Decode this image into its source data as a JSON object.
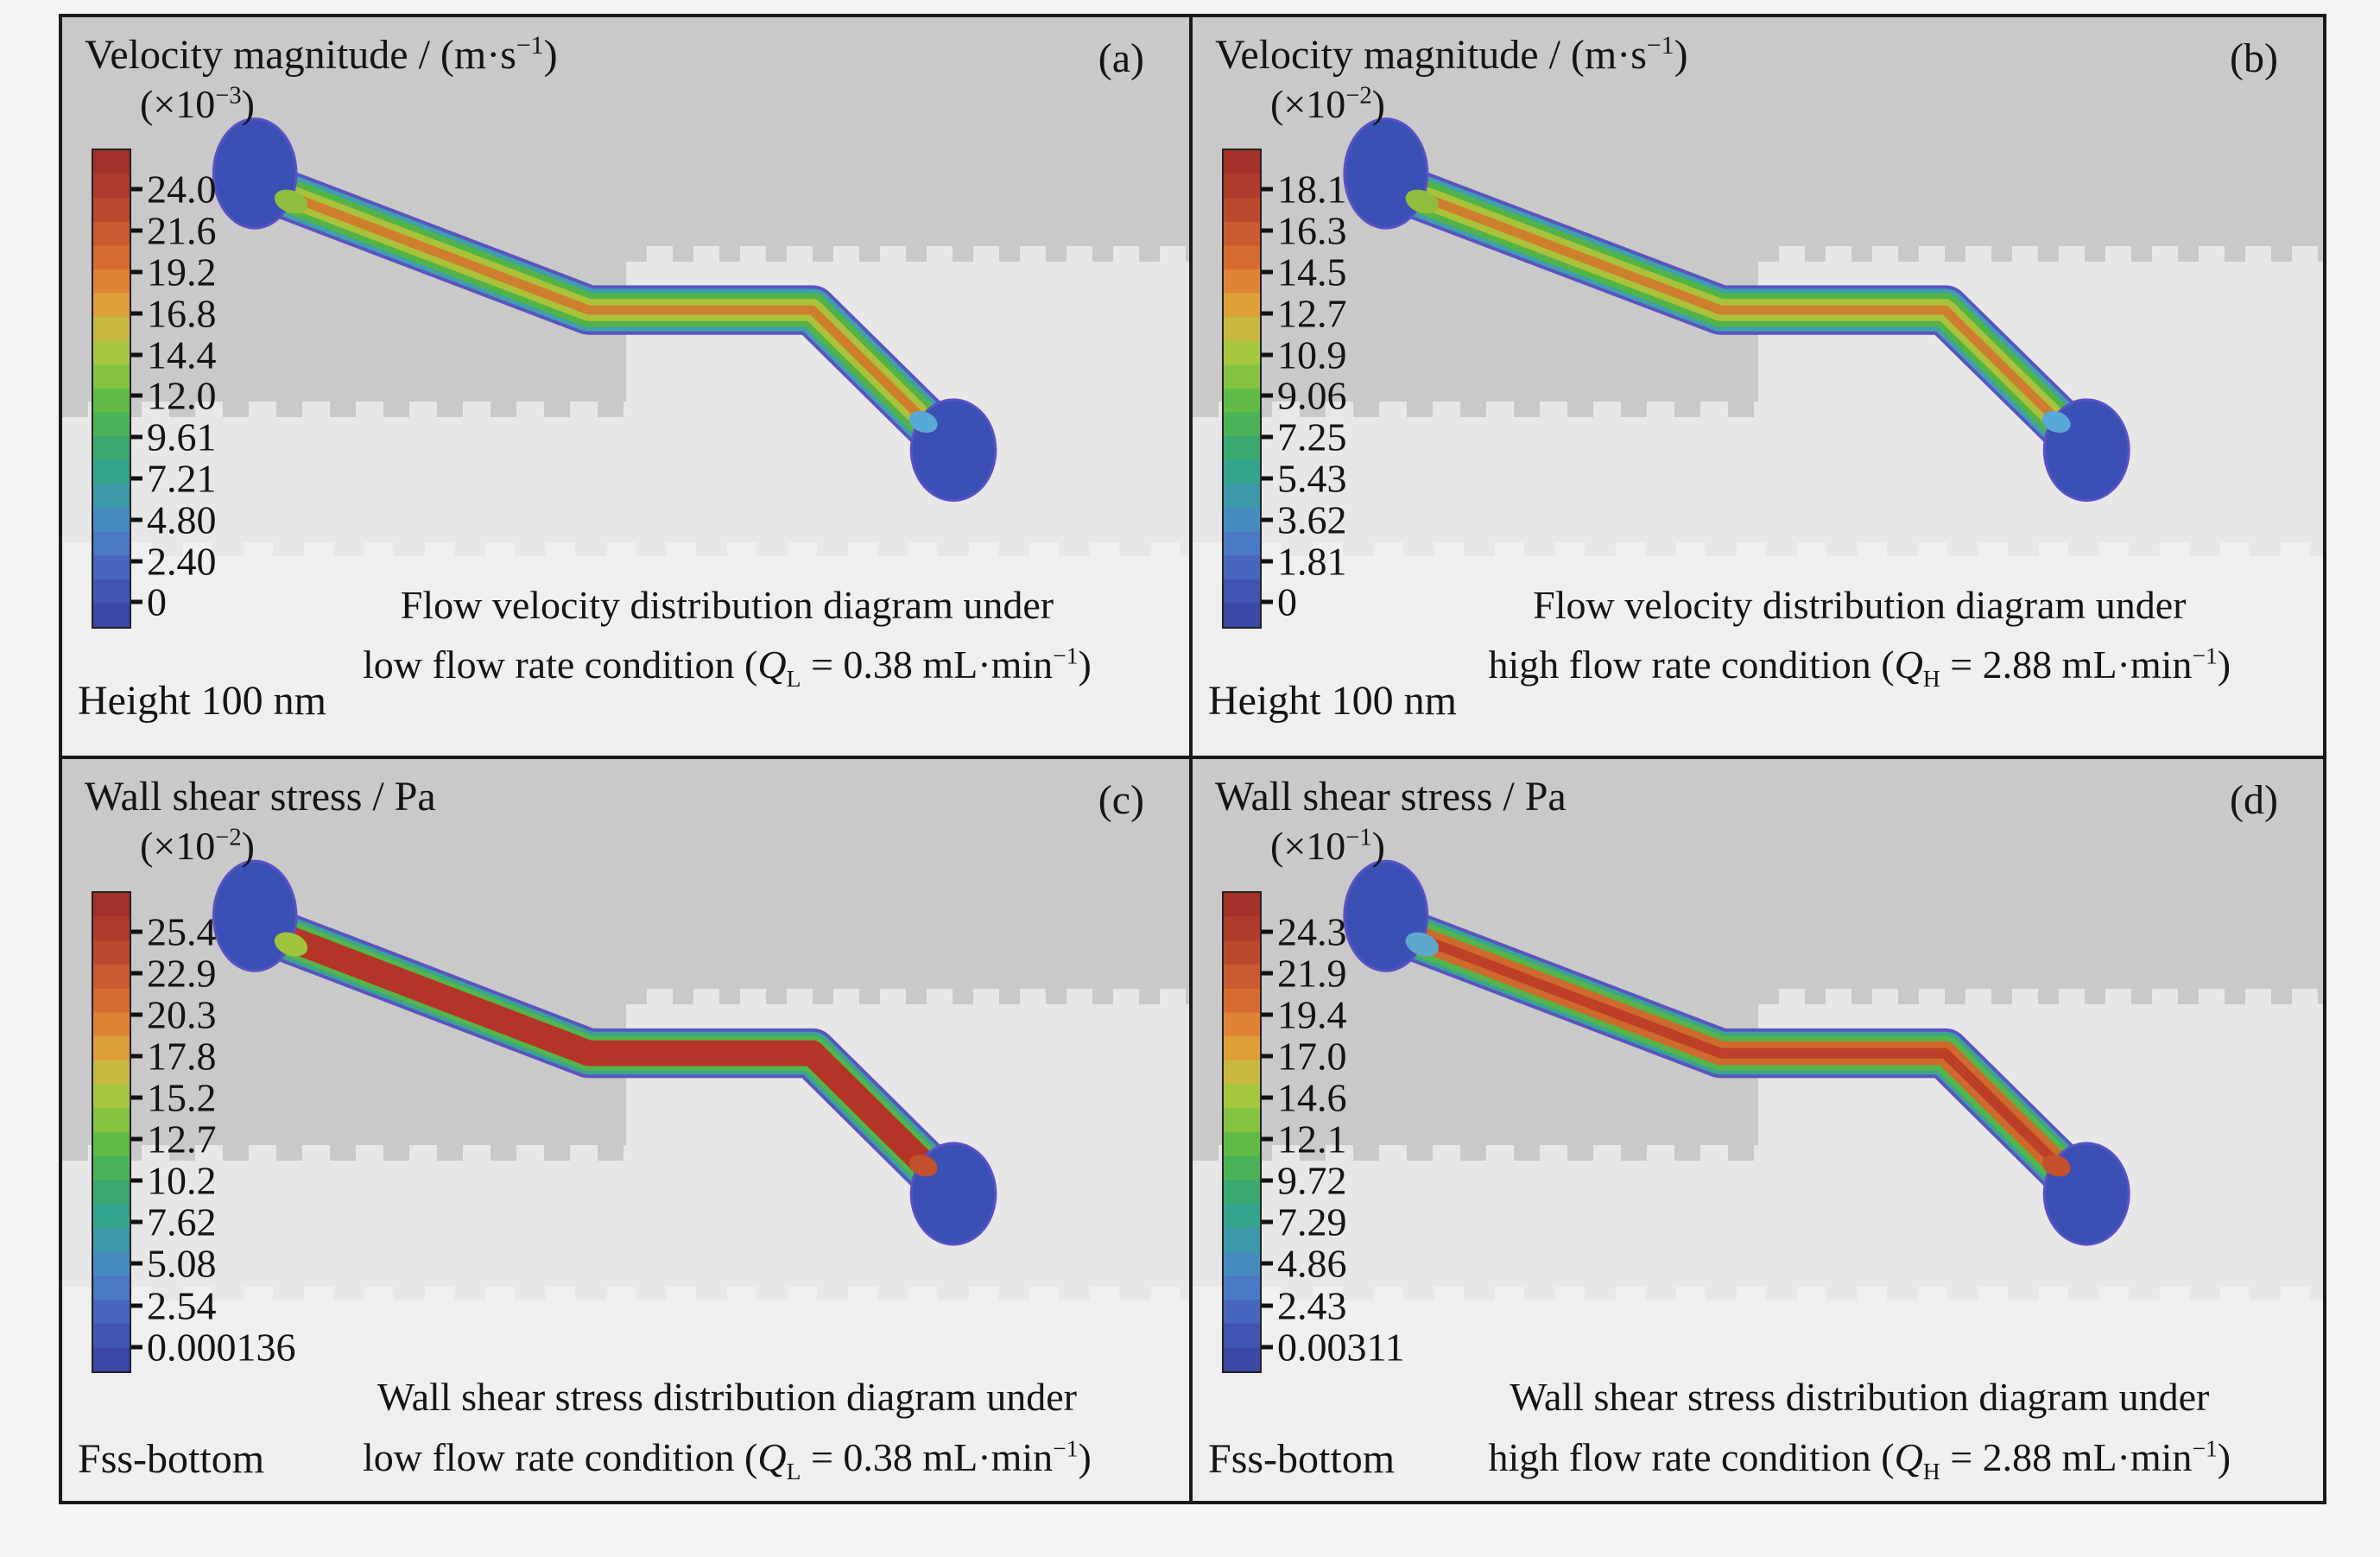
{
  "figure": {
    "colorbar_colors": [
      "#a4302a",
      "#b03a2c",
      "#bc482e",
      "#ca5a2f",
      "#d76c31",
      "#df8335",
      "#dda039",
      "#c8ba3e",
      "#a6c83e",
      "#83c340",
      "#60bc47",
      "#4bb357",
      "#3ba972",
      "#35a48e",
      "#3c9aa9",
      "#468bbe",
      "#4b79c4",
      "#4866bd",
      "#4154b2",
      "#3a47a5"
    ],
    "colors": {
      "reservoir_fill": "#3b50b4",
      "reservoir_stroke": "#5952c5",
      "dark_band": "#c9c9c9",
      "light_band": "#efefef",
      "panel_background": "#e7e7e7"
    }
  },
  "panels": [
    {
      "id": "a",
      "label": "(a)",
      "title": {
        "pre": "Velocity magnitude / (m·s",
        "sup": "−1",
        "post": ")"
      },
      "multiplier": {
        "pre": "(×10",
        "sup": "−3",
        "post": ")"
      },
      "ticks": [
        "24.0",
        "21.6",
        "19.2",
        "16.8",
        "14.4",
        "12.0",
        "9.61",
        "7.21",
        "4.80",
        "2.40",
        "0"
      ],
      "caption_line1": "Flow velocity distribution diagram under",
      "caption_line2": {
        "pre": "low flow rate condition (",
        "q": "Q",
        "qsub": "L",
        "mid": " = 0.38 mL·min",
        "sup": "−1",
        "post": ")"
      },
      "corner_label": "Height 100 nm",
      "junction_in": "#8fbe3f",
      "junction_out": "#58a8d8",
      "channel_layers": [
        {
          "color": "#5a54c0",
          "width": 58
        },
        {
          "color": "#3f9fae",
          "width": 50
        },
        {
          "color": "#52b348",
          "width": 40
        },
        {
          "color": "#a9c23a",
          "width": 26
        },
        {
          "color": "#cf7e2e",
          "width": 11
        }
      ]
    },
    {
      "id": "b",
      "label": "(b)",
      "title": {
        "pre": "Velocity magnitude / (m·s",
        "sup": "−1",
        "post": ")"
      },
      "multiplier": {
        "pre": "(×10",
        "sup": "−2",
        "post": ")"
      },
      "ticks": [
        "18.1",
        "16.3",
        "14.5",
        "12.7",
        "10.9",
        "9.06",
        "7.25",
        "5.43",
        "3.62",
        "1.81",
        "0"
      ],
      "caption_line1": "Flow velocity distribution diagram under",
      "caption_line2": {
        "pre": "high flow rate condition (",
        "q": "Q",
        "qsub": "H",
        "mid": " = 2.88 mL·min",
        "sup": "−1",
        "post": ")"
      },
      "corner_label": "Height 100 nm",
      "junction_in": "#8fbe3f",
      "junction_out": "#58a8d8",
      "channel_layers": [
        {
          "color": "#5a54c0",
          "width": 58
        },
        {
          "color": "#3f9fae",
          "width": 50
        },
        {
          "color": "#52b348",
          "width": 40
        },
        {
          "color": "#a9c23a",
          "width": 26
        },
        {
          "color": "#cf7e2e",
          "width": 11
        }
      ]
    },
    {
      "id": "c",
      "label": "(c)",
      "title": {
        "pre": "Wall shear stress / Pa",
        "sup": "",
        "post": ""
      },
      "multiplier": {
        "pre": "(×10",
        "sup": "−2",
        "post": ")"
      },
      "ticks": [
        "25.4",
        "22.9",
        "20.3",
        "17.8",
        "15.2",
        "12.7",
        "10.2",
        "7.62",
        "5.08",
        "2.54",
        "0.000136"
      ],
      "caption_line1": "Wall shear stress distribution diagram under",
      "caption_line2": {
        "pre": "low flow rate condition (",
        "q": "Q",
        "qsub": "L",
        "mid": " = 0.38 mL·min",
        "sup": "−1",
        "post": ")"
      },
      "corner_label": "Fss-bottom",
      "junction_in": "#9ec43c",
      "junction_out": "#c2502a",
      "channel_layers": [
        {
          "color": "#5a54c0",
          "width": 58
        },
        {
          "color": "#3aa394",
          "width": 50
        },
        {
          "color": "#55b44a",
          "width": 41
        },
        {
          "color": "#b43428",
          "width": 30
        }
      ]
    },
    {
      "id": "d",
      "label": "(d)",
      "title": {
        "pre": "Wall shear stress / Pa",
        "sup": "",
        "post": ""
      },
      "multiplier": {
        "pre": "(×10",
        "sup": "−1",
        "post": ")"
      },
      "ticks": [
        "24.3",
        "21.9",
        "19.4",
        "17.0",
        "14.6",
        "12.1",
        "9.72",
        "7.29",
        "4.86",
        "2.43",
        "0.00311"
      ],
      "caption_line1": "Wall shear stress distribution diagram under",
      "caption_line2": {
        "pre": "high flow rate condition (",
        "q": "Q",
        "qsub": "H",
        "mid": " = 2.88 mL·min",
        "sup": "−1",
        "post": ")"
      },
      "corner_label": "Fss-bottom",
      "junction_in": "#5fa8cc",
      "junction_out": "#c2502a",
      "channel_layers": [
        {
          "color": "#5a54c0",
          "width": 58
        },
        {
          "color": "#3aa394",
          "width": 50
        },
        {
          "color": "#55b44a",
          "width": 41
        },
        {
          "color": "#cf6a2d",
          "width": 28
        },
        {
          "color": "#bd3f27",
          "width": 12
        }
      ]
    }
  ],
  "chart_data": [
    {
      "type": "heatmap",
      "panel": "a",
      "quantity": "Velocity magnitude",
      "units": "m·s−1",
      "scale_multiplier": "×10−3",
      "colorbar_ticks": [
        24.0,
        21.6,
        19.2,
        16.8,
        14.4,
        12.0,
        9.61,
        7.21,
        4.8,
        2.4,
        0
      ],
      "legend_position": "left",
      "colormap": "rainbow (red high → blue low)",
      "caption": "Flow velocity distribution diagram under low flow rate condition (QL = 0.38 mL·min−1)",
      "flow_rate_mL_min": 0.38,
      "annotation": "Height 100 nm",
      "geometry": "serpentine microchannel between two circular reservoirs (inlet top-left, outlet bottom-right)"
    },
    {
      "type": "heatmap",
      "panel": "b",
      "quantity": "Velocity magnitude",
      "units": "m·s−1",
      "scale_multiplier": "×10−2",
      "colorbar_ticks": [
        18.1,
        16.3,
        14.5,
        12.7,
        10.9,
        9.06,
        7.25,
        5.43,
        3.62,
        1.81,
        0
      ],
      "legend_position": "left",
      "colormap": "rainbow (red high → blue low)",
      "caption": "Flow velocity distribution diagram under high flow rate condition (QH = 2.88 mL·min−1)",
      "flow_rate_mL_min": 2.88,
      "annotation": "Height 100 nm",
      "geometry": "serpentine microchannel between two circular reservoirs (inlet top-left, outlet bottom-right)"
    },
    {
      "type": "heatmap",
      "panel": "c",
      "quantity": "Wall shear stress",
      "units": "Pa",
      "scale_multiplier": "×10−2",
      "colorbar_ticks": [
        25.4,
        22.9,
        20.3,
        17.8,
        15.2,
        12.7,
        10.2,
        7.62,
        5.08,
        2.54,
        0.000136
      ],
      "legend_position": "left",
      "colormap": "rainbow (red high → blue low)",
      "caption": "Wall shear stress distribution diagram under low flow rate condition (QL = 0.38 mL·min−1)",
      "flow_rate_mL_min": 0.38,
      "annotation": "Fss-bottom",
      "geometry": "serpentine microchannel between two circular reservoirs (inlet top-left, outlet bottom-right)"
    },
    {
      "type": "heatmap",
      "panel": "d",
      "quantity": "Wall shear stress",
      "units": "Pa",
      "scale_multiplier": "×10−1",
      "colorbar_ticks": [
        24.3,
        21.9,
        19.4,
        17.0,
        14.6,
        12.1,
        9.72,
        7.29,
        4.86,
        2.43,
        0.00311
      ],
      "legend_position": "left",
      "colormap": "rainbow (red high → blue low)",
      "caption": "Wall shear stress distribution diagram under high flow rate condition (QH = 2.88 mL·min−1)",
      "flow_rate_mL_min": 2.88,
      "annotation": "Fss-bottom",
      "geometry": "serpentine microchannel between two circular reservoirs (inlet top-left, outlet bottom-right)"
    }
  ]
}
